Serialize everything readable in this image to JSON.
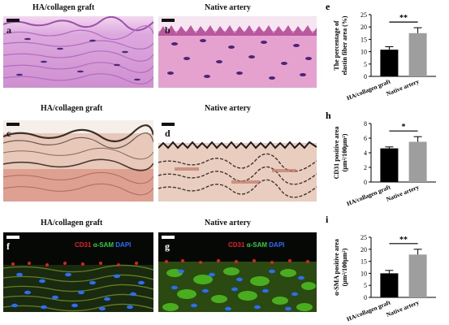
{
  "headers": {
    "he_left": "HA/collagen graft",
    "he_right": "Native artery",
    "ev_left": "HA/collagen graft",
    "ev_right": "Native artery",
    "if_left": "HA/collagen graft",
    "if_right": "Native artery"
  },
  "panel_labels": {
    "a": "a",
    "b": "b",
    "c": "c",
    "d": "d",
    "f": "f",
    "g": "g"
  },
  "if_legend": {
    "cd31": "CD31",
    "asam": "α-SAM",
    "dapi": "DAPI"
  },
  "colors": {
    "graft_bar": "#000000",
    "native_bar": "#9e9e9e",
    "cd31": "#e0201b",
    "asam": "#2ecc3a",
    "dapi": "#2a6dff"
  },
  "chart_data": [
    {
      "panel": "e",
      "type": "bar",
      "categories": [
        "HA/collagen graft",
        "Native artery"
      ],
      "values": [
        10.8,
        17.5
      ],
      "errors": [
        1.2,
        2.2
      ],
      "ylabel": [
        "The percentage of",
        "elastin fiber area (%)"
      ],
      "ylim": [
        0,
        25
      ],
      "yticks": [
        0,
        5,
        10,
        15,
        20,
        25
      ],
      "significance": "**"
    },
    {
      "panel": "h",
      "type": "bar",
      "categories": [
        "HA/collagen graft",
        "Native artery"
      ],
      "values": [
        4.6,
        5.5
      ],
      "errors": [
        0.2,
        0.7
      ],
      "ylabel": [
        "CD31 positive area",
        "(μm²/100μm²)"
      ],
      "ylim": [
        0,
        8
      ],
      "yticks": [
        0,
        2,
        4,
        6,
        8
      ],
      "significance": "*"
    },
    {
      "panel": "i",
      "type": "bar",
      "categories": [
        "HA/collagen graft",
        "Native artery"
      ],
      "values": [
        10,
        17.8
      ],
      "errors": [
        1.2,
        2.2
      ],
      "ylabel": [
        "α-SMA positive area",
        "(μm²/100μm²)"
      ],
      "ylim": [
        0,
        25
      ],
      "yticks": [
        0,
        5,
        10,
        15,
        20,
        25
      ],
      "significance": "**"
    }
  ]
}
